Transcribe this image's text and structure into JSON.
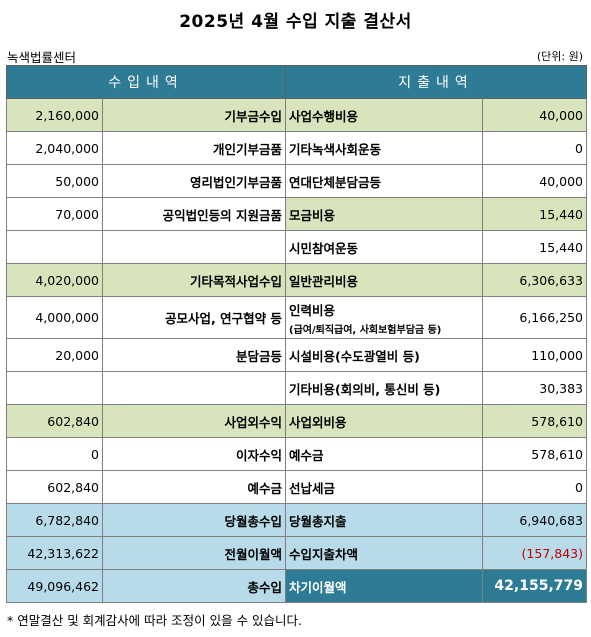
{
  "title": "2025년 4월 수입 지출 결산서",
  "org": "녹색법률센터",
  "unit": "(단위: 원)",
  "header": {
    "income": "수입내역",
    "expense": "지출내역"
  },
  "rows": [
    {
      "in_amount": "2,160,000",
      "in_label": "기부금수입",
      "ex_label": "사업수행비용",
      "ex_note": "",
      "ex_amount": "40,000"
    },
    {
      "in_amount": "2,040,000",
      "in_label": "개인기부금품",
      "ex_label": "기타녹색사회운동",
      "ex_note": "",
      "ex_amount": "0"
    },
    {
      "in_amount": "50,000",
      "in_label": "영리법인기부금품",
      "ex_label": "연대단체분담금등",
      "ex_note": "",
      "ex_amount": "40,000"
    },
    {
      "in_amount": "70,000",
      "in_label": "공익법인등의 지원금품",
      "ex_label": "모금비용",
      "ex_note": "",
      "ex_amount": "15,440"
    },
    {
      "in_amount": "",
      "in_label": "",
      "ex_label": "시민참여운동",
      "ex_note": "",
      "ex_amount": "15,440"
    },
    {
      "in_amount": "4,020,000",
      "in_label": "기타목적사업수입",
      "ex_label": "일반관리비용",
      "ex_note": "",
      "ex_amount": "6,306,633"
    },
    {
      "in_amount": "4,000,000",
      "in_label": "공모사업, 연구협약 등",
      "ex_label": "인력비용",
      "ex_note": "(급여/퇴직급여, 사회보험부담금 등)",
      "ex_amount": "6,166,250"
    },
    {
      "in_amount": "20,000",
      "in_label": "분담금등",
      "ex_label": "시설비용(수도광열비 등)",
      "ex_note": "",
      "ex_amount": "110,000"
    },
    {
      "in_amount": "",
      "in_label": "",
      "ex_label": "기타비용(회의비, 통신비 등)",
      "ex_note": "",
      "ex_amount": "30,383"
    },
    {
      "in_amount": "602,840",
      "in_label": "사업외수익",
      "ex_label": "사업외비용",
      "ex_note": "",
      "ex_amount": "578,610"
    },
    {
      "in_amount": "0",
      "in_label": "이자수익",
      "ex_label": "예수금",
      "ex_note": "",
      "ex_amount": "578,610"
    },
    {
      "in_amount": "602,840",
      "in_label": "예수금",
      "ex_label": "선납세금",
      "ex_note": "",
      "ex_amount": "0"
    },
    {
      "in_amount": "6,782,840",
      "in_label": "당월총수입",
      "ex_label": "당월총지출",
      "ex_note": "",
      "ex_amount": "6,940,683"
    },
    {
      "in_amount": "42,313,622",
      "in_label": "전월이월액",
      "ex_label": "수입지출차액",
      "ex_note": "",
      "ex_amount": "(157,843)"
    },
    {
      "in_amount": "49,096,462",
      "in_label": "총수입",
      "ex_label": "차기이월액",
      "ex_note": "",
      "ex_amount": "42,155,779"
    }
  ],
  "colors": {
    "header": "#2e7b96",
    "category": "#d8e4bc",
    "total": "#b7dbe8",
    "negative": "#c00000"
  },
  "note": "* 연말결산 및 회계감사에 따라 조정이 있을 수 있습니다."
}
